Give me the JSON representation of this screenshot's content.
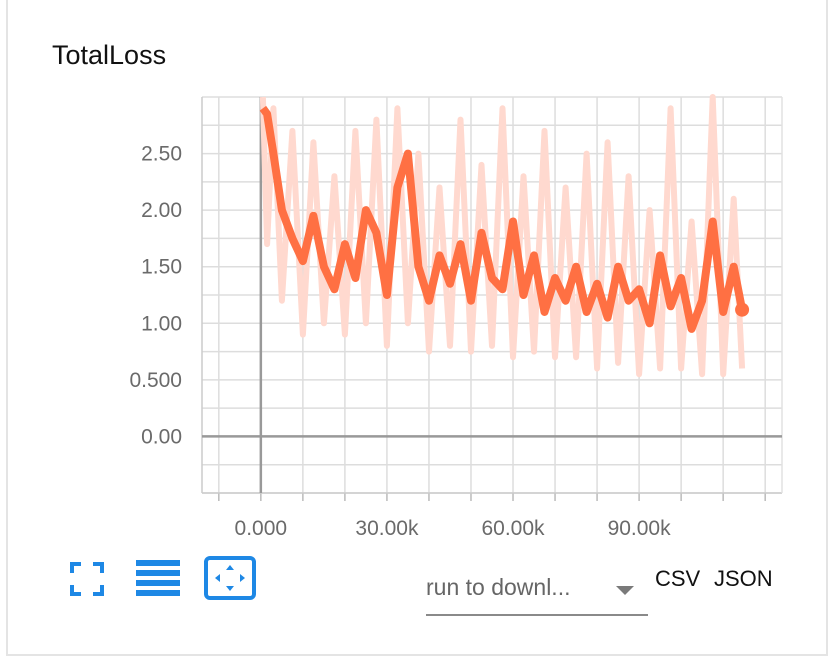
{
  "title": "TotalLoss",
  "colors": {
    "smoothed": "#ff7043",
    "raw": "#ffd9cf",
    "icon_blue": "#1e88e5",
    "grid": "#dddddd",
    "axis": "#999999"
  },
  "chart_data": {
    "type": "line",
    "title": "TotalLoss",
    "xlabel": "",
    "ylabel": "",
    "xlim": [
      -14000,
      124000
    ],
    "ylim": [
      -0.5,
      3.0
    ],
    "xticks": [
      "0.000",
      "30.00k",
      "60.00k",
      "90.00k"
    ],
    "yticks": [
      "0.00",
      "0.500",
      "1.00",
      "1.50",
      "2.00",
      "2.50"
    ],
    "grid": true,
    "x": [
      500,
      1500,
      3000,
      5000,
      7500,
      10000,
      12500,
      15000,
      17500,
      20000,
      22500,
      25000,
      27500,
      30000,
      32500,
      35000,
      37500,
      40000,
      42500,
      45000,
      47500,
      50000,
      52500,
      55000,
      57500,
      60000,
      62500,
      65000,
      67500,
      70000,
      72500,
      75000,
      77500,
      80000,
      82500,
      85000,
      87500,
      90000,
      92500,
      95000,
      97500,
      100000,
      102500,
      105000,
      107500,
      110000,
      112500,
      114500
    ],
    "series": [
      {
        "role": "smoothed",
        "values": [
          2.9,
          2.85,
          2.5,
          2.0,
          1.75,
          1.55,
          1.95,
          1.5,
          1.3,
          1.7,
          1.4,
          2.0,
          1.8,
          1.25,
          2.2,
          2.5,
          1.5,
          1.2,
          1.6,
          1.35,
          1.7,
          1.2,
          1.8,
          1.4,
          1.3,
          1.9,
          1.25,
          1.6,
          1.1,
          1.4,
          1.2,
          1.5,
          1.1,
          1.35,
          1.05,
          1.5,
          1.2,
          1.3,
          1.0,
          1.6,
          1.15,
          1.4,
          0.95,
          1.2,
          1.9,
          1.1,
          1.5,
          1.12
        ]
      },
      {
        "role": "raw",
        "values": [
          3.0,
          1.7,
          2.9,
          1.2,
          2.7,
          0.9,
          2.6,
          1.0,
          2.3,
          0.9,
          2.7,
          1.0,
          2.8,
          0.8,
          2.9,
          1.0,
          2.5,
          0.75,
          2.2,
          0.8,
          2.8,
          0.75,
          2.4,
          0.8,
          2.9,
          0.7,
          2.3,
          0.75,
          2.7,
          0.7,
          2.2,
          0.7,
          2.5,
          0.6,
          2.6,
          0.65,
          2.3,
          0.55,
          2.0,
          0.6,
          2.9,
          0.6,
          1.9,
          0.55,
          3.0,
          0.55,
          2.1,
          0.6
        ]
      }
    ]
  },
  "controls": {
    "run_select_value": "run to downl...",
    "csv_label": "CSV",
    "json_label": "JSON"
  }
}
